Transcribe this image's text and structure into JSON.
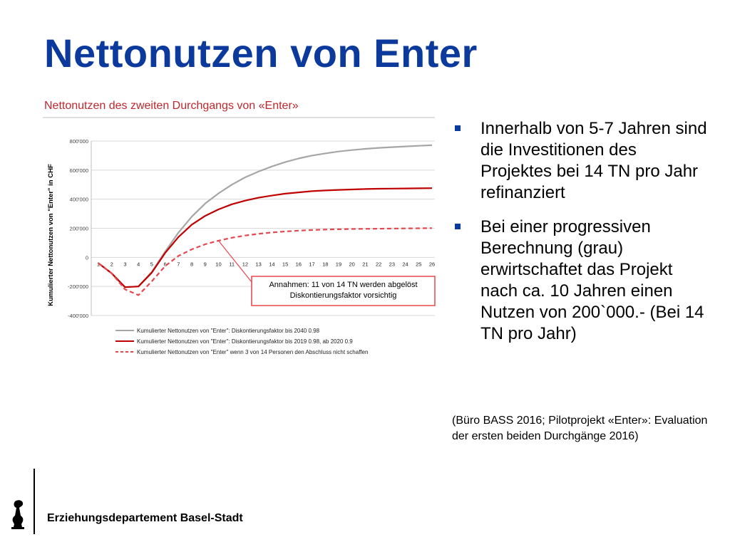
{
  "slide": {
    "title": "Nettonutzen von Enter",
    "footer": "Erziehungsdepartement Basel-Stadt"
  },
  "bullets": [
    "Innerhalb von 5-7 Jahren sind die Investitionen des Projektes bei 14 TN pro Jahr refinanziert",
    "Bei einer progressiven Berechnung (grau) erwirtschaftet das Projekt nach ca. 10 Jahren einen Nutzen von 200`000.-  (Bei 14 TN pro Jahr)"
  ],
  "source": "(Büro BASS 2016; Pilotprojekt «Enter»: Evaluation der ersten beiden Durchgänge 2016)",
  "colors": {
    "title": "#0b3a9c",
    "grey_series": "#a6a6a6",
    "red_series": "#c00000",
    "dashed_series": "#e8464d",
    "annotation_border": "#e8464d",
    "chart_title": "#c0272d"
  },
  "chart_data": {
    "type": "line",
    "title": "Nettonutzen des zweiten Durchgangs von «Enter»",
    "ylabel": "Kumulierter Nettonutzen von \"Enter\" in CHF",
    "xlabel": "",
    "ylim": [
      -400000,
      800000
    ],
    "yticks": [
      {
        "value": 800000,
        "label": "800'000"
      },
      {
        "value": 600000,
        "label": "600'000"
      },
      {
        "value": 400000,
        "label": "400'000"
      },
      {
        "value": 200000,
        "label": "200'000"
      },
      {
        "value": 0,
        "label": "0"
      },
      {
        "value": -200000,
        "label": "-200'000"
      },
      {
        "value": -400000,
        "label": "-400'000"
      }
    ],
    "grid": true,
    "legend_position": "bottom",
    "x": [
      "1",
      "2",
      "3",
      "4",
      "5",
      "6",
      "7",
      "8",
      "9",
      "10",
      "11",
      "12",
      "13",
      "14",
      "15",
      "16",
      "17",
      "18",
      "19",
      "20",
      "21",
      "22",
      "23",
      "24",
      "25",
      "26"
    ],
    "series": [
      {
        "name": "Kumulierter Nettonutzen von \"Enter\": Diskontierungsfaktor bis 2040 0.98",
        "color": "#a6a6a6",
        "dash": "solid",
        "values": [
          -40000,
          -110000,
          -205000,
          -200000,
          -100000,
          40000,
          170000,
          280000,
          370000,
          440000,
          500000,
          550000,
          590000,
          625000,
          655000,
          680000,
          700000,
          715000,
          728000,
          738000,
          746000,
          753000,
          758000,
          763000,
          767000,
          771000
        ]
      },
      {
        "name": "Kumulierter Nettonutzen von \"Enter\": Diskontierungsfaktor bis 2019 0.98, ab 2020 0.9",
        "color": "#c00000",
        "dash": "solid",
        "values": [
          -40000,
          -110000,
          -205000,
          -200000,
          -105000,
          30000,
          140000,
          225000,
          285000,
          330000,
          365000,
          390000,
          410000,
          425000,
          438000,
          447000,
          455000,
          460000,
          464000,
          467000,
          470000,
          472000,
          473000,
          474000,
          475000,
          476000
        ]
      },
      {
        "name": "Kumulierter Nettonutzen von \"Enter\" wenn 3 von 14 Personen den Abschluss nicht schaffen",
        "color": "#e8464d",
        "dash": "dashed",
        "values": [
          -40000,
          -110000,
          -220000,
          -260000,
          -165000,
          -60000,
          10000,
          55000,
          90000,
          115000,
          135000,
          150000,
          162000,
          171000,
          178000,
          184000,
          188000,
          191000,
          193000,
          195000,
          196000,
          197000,
          198000,
          199000,
          200000,
          201000
        ]
      }
    ],
    "annotation": {
      "lines": [
        "Annahmen:  11 von 14 TN werden abgelöst",
        "Diskontierungsfaktor vorsichtig"
      ],
      "pointer_x_index": 9,
      "pointer_series": 2
    }
  }
}
